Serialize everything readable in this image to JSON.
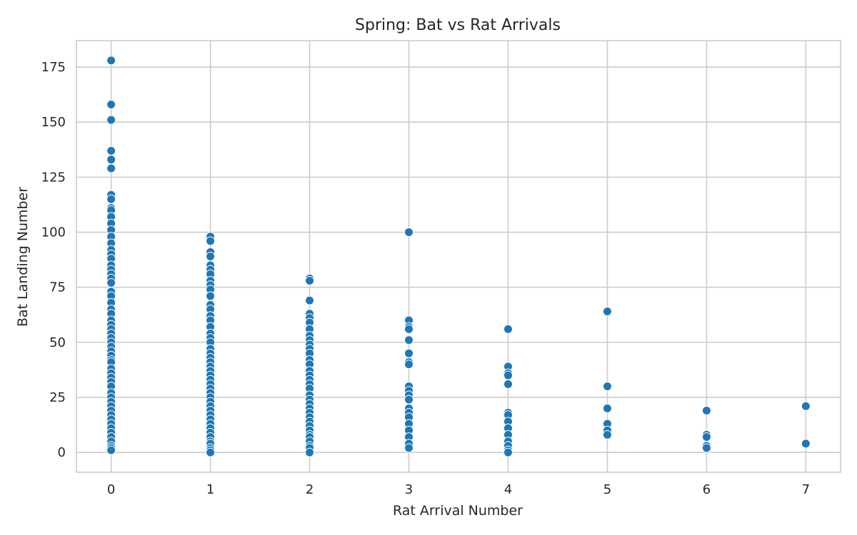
{
  "chart_data": {
    "type": "scatter",
    "title": "Spring: Bat vs Rat Arrivals",
    "xlabel": "Rat Arrival Number",
    "ylabel": "Bat Landing Number",
    "xlim": [
      -0.35,
      7.35
    ],
    "ylim": [
      -9,
      187
    ],
    "xticks": [
      0,
      1,
      2,
      3,
      4,
      5,
      6,
      7
    ],
    "yticks": [
      0,
      25,
      50,
      75,
      100,
      125,
      150,
      175
    ],
    "grid": true,
    "legend": "none",
    "color": "#1f77b4",
    "points": [
      [
        0,
        178
      ],
      [
        0,
        158
      ],
      [
        0,
        151
      ],
      [
        0,
        137
      ],
      [
        0,
        133
      ],
      [
        0,
        129
      ],
      [
        0,
        117
      ],
      [
        0,
        115
      ],
      [
        0,
        111
      ],
      [
        0,
        110
      ],
      [
        0,
        107
      ],
      [
        0,
        104
      ],
      [
        0,
        101
      ],
      [
        0,
        98
      ],
      [
        0,
        95
      ],
      [
        0,
        92
      ],
      [
        0,
        90
      ],
      [
        0,
        88
      ],
      [
        0,
        85
      ],
      [
        0,
        83
      ],
      [
        0,
        81
      ],
      [
        0,
        79
      ],
      [
        0,
        77
      ],
      [
        0,
        73
      ],
      [
        0,
        71
      ],
      [
        0,
        68
      ],
      [
        0,
        65
      ],
      [
        0,
        63
      ],
      [
        0,
        60
      ],
      [
        0,
        58
      ],
      [
        0,
        56
      ],
      [
        0,
        54
      ],
      [
        0,
        52
      ],
      [
        0,
        50
      ],
      [
        0,
        48
      ],
      [
        0,
        46
      ],
      [
        0,
        44
      ],
      [
        0,
        42
      ],
      [
        0,
        41
      ],
      [
        0,
        38
      ],
      [
        0,
        36
      ],
      [
        0,
        34
      ],
      [
        0,
        32
      ],
      [
        0,
        30
      ],
      [
        0,
        27
      ],
      [
        0,
        25
      ],
      [
        0,
        23
      ],
      [
        0,
        21
      ],
      [
        0,
        19
      ],
      [
        0,
        17
      ],
      [
        0,
        15
      ],
      [
        0,
        13
      ],
      [
        0,
        11
      ],
      [
        0,
        9
      ],
      [
        0,
        7
      ],
      [
        0,
        5
      ],
      [
        0,
        3
      ],
      [
        0,
        2
      ],
      [
        0,
        1
      ],
      [
        1,
        98
      ],
      [
        1,
        96
      ],
      [
        1,
        91
      ],
      [
        1,
        89
      ],
      [
        1,
        85
      ],
      [
        1,
        83
      ],
      [
        1,
        81
      ],
      [
        1,
        78
      ],
      [
        1,
        76
      ],
      [
        1,
        74
      ],
      [
        1,
        71
      ],
      [
        1,
        67
      ],
      [
        1,
        65
      ],
      [
        1,
        62
      ],
      [
        1,
        60
      ],
      [
        1,
        57
      ],
      [
        1,
        54
      ],
      [
        1,
        52
      ],
      [
        1,
        50
      ],
      [
        1,
        47
      ],
      [
        1,
        45
      ],
      [
        1,
        43
      ],
      [
        1,
        41
      ],
      [
        1,
        39
      ],
      [
        1,
        37
      ],
      [
        1,
        35
      ],
      [
        1,
        33
      ],
      [
        1,
        31
      ],
      [
        1,
        29
      ],
      [
        1,
        27
      ],
      [
        1,
        25
      ],
      [
        1,
        23
      ],
      [
        1,
        21
      ],
      [
        1,
        19
      ],
      [
        1,
        17
      ],
      [
        1,
        15
      ],
      [
        1,
        13
      ],
      [
        1,
        11
      ],
      [
        1,
        9
      ],
      [
        1,
        7
      ],
      [
        1,
        5
      ],
      [
        1,
        4
      ],
      [
        1,
        2
      ],
      [
        1,
        1
      ],
      [
        1,
        0
      ],
      [
        2,
        79
      ],
      [
        2,
        78
      ],
      [
        2,
        69
      ],
      [
        2,
        63
      ],
      [
        2,
        61
      ],
      [
        2,
        59
      ],
      [
        2,
        56
      ],
      [
        2,
        53
      ],
      [
        2,
        51
      ],
      [
        2,
        49
      ],
      [
        2,
        47
      ],
      [
        2,
        45
      ],
      [
        2,
        42
      ],
      [
        2,
        40
      ],
      [
        2,
        37
      ],
      [
        2,
        35
      ],
      [
        2,
        33
      ],
      [
        2,
        31
      ],
      [
        2,
        29
      ],
      [
        2,
        26
      ],
      [
        2,
        24
      ],
      [
        2,
        22
      ],
      [
        2,
        20
      ],
      [
        2,
        18
      ],
      [
        2,
        16
      ],
      [
        2,
        14
      ],
      [
        2,
        12
      ],
      [
        2,
        10
      ],
      [
        2,
        8
      ],
      [
        2,
        7
      ],
      [
        2,
        5
      ],
      [
        2,
        3
      ],
      [
        2,
        2
      ],
      [
        2,
        0
      ],
      [
        3,
        100
      ],
      [
        3,
        60
      ],
      [
        3,
        57
      ],
      [
        3,
        56
      ],
      [
        3,
        51
      ],
      [
        3,
        45
      ],
      [
        3,
        41
      ],
      [
        3,
        40
      ],
      [
        3,
        30
      ],
      [
        3,
        28
      ],
      [
        3,
        26
      ],
      [
        3,
        24
      ],
      [
        3,
        20
      ],
      [
        3,
        18
      ],
      [
        3,
        16
      ],
      [
        3,
        13
      ],
      [
        3,
        10
      ],
      [
        3,
        7
      ],
      [
        3,
        4
      ],
      [
        3,
        2
      ],
      [
        4,
        56
      ],
      [
        4,
        39
      ],
      [
        4,
        36
      ],
      [
        4,
        35
      ],
      [
        4,
        31
      ],
      [
        4,
        18
      ],
      [
        4,
        17
      ],
      [
        4,
        14
      ],
      [
        4,
        11
      ],
      [
        4,
        8
      ],
      [
        4,
        5
      ],
      [
        4,
        3
      ],
      [
        4,
        1
      ],
      [
        4,
        0
      ],
      [
        5,
        64
      ],
      [
        5,
        30
      ],
      [
        5,
        20
      ],
      [
        5,
        13
      ],
      [
        5,
        10
      ],
      [
        5,
        8
      ],
      [
        6,
        19
      ],
      [
        6,
        8
      ],
      [
        6,
        7
      ],
      [
        6,
        3
      ],
      [
        6,
        2
      ],
      [
        7,
        21
      ],
      [
        7,
        4
      ]
    ]
  }
}
